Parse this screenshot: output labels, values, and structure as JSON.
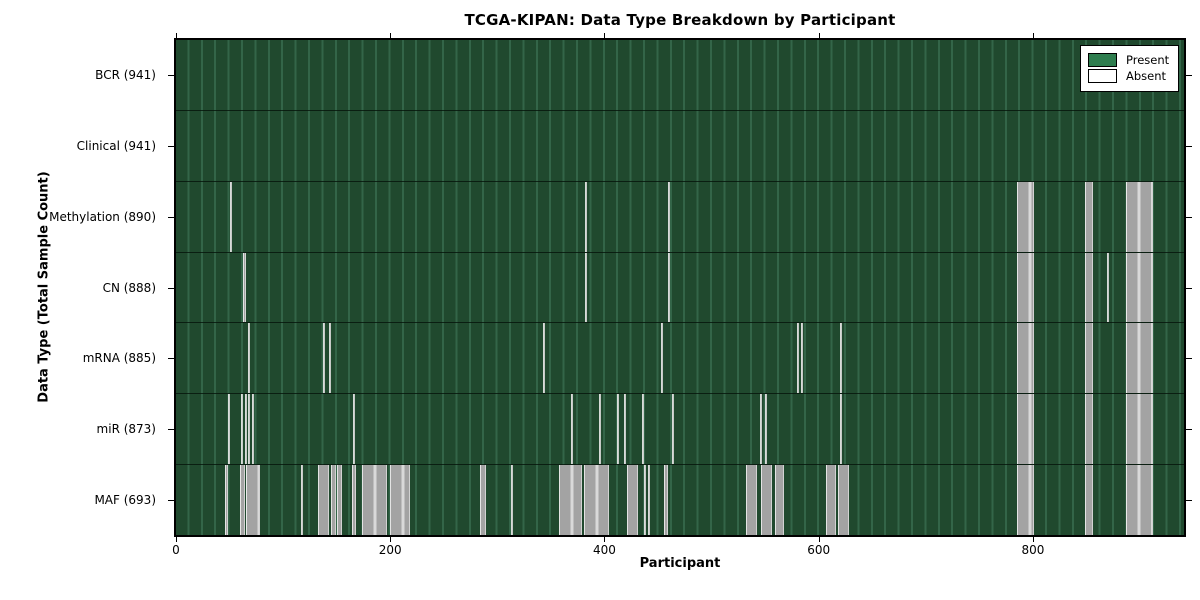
{
  "figure": {
    "title": "TCGA-KIPAN: Data Type Breakdown by Participant",
    "xlabel": "Participant",
    "ylabel": "Data Type (Total Sample Count)"
  },
  "legend": {
    "present": "Present",
    "absent": "Absent"
  },
  "colors": {
    "present_fill": "#2e7d4e",
    "present_dark": "#20492e",
    "present_grid_line": "#336548",
    "absent_fill": "#ffffff",
    "absent_stripe": "#a3a3a3",
    "absent_stripe_light": "#d9d9d9",
    "axis": "#000000",
    "figure_background": "#ffffff"
  },
  "chart_data": {
    "type": "heatmap",
    "title": "TCGA-KIPAN: Data Type Breakdown by Participant",
    "xlabel": "Participant",
    "ylabel": "Data Type (Total Sample Count)",
    "legend": [
      {
        "label": "Present",
        "color": "#2e7d4e"
      },
      {
        "label": "Absent",
        "color": "#ffffff"
      }
    ],
    "legend_position": "upper right",
    "grid": false,
    "x_range": [
      0,
      941
    ],
    "x_ticks": [
      0,
      200,
      400,
      600,
      800
    ],
    "total_participants": 941,
    "rows": [
      {
        "label": "BCR (941)",
        "data_type": "BCR",
        "present_count": 941,
        "absent_count": 0,
        "absent_intervals": []
      },
      {
        "label": "Clinical (941)",
        "data_type": "Clinical",
        "present_count": 941,
        "absent_count": 0,
        "absent_intervals": []
      },
      {
        "label": "Methylation (890)",
        "data_type": "Methylation",
        "present_count": 890,
        "absent_count": 51,
        "absent_intervals": [
          [
            50,
            51
          ],
          [
            382,
            383
          ],
          [
            459,
            460
          ],
          [
            785,
            801
          ],
          [
            849,
            856
          ],
          [
            887,
            912
          ]
        ]
      },
      {
        "label": "CN (888)",
        "data_type": "CN",
        "present_count": 888,
        "absent_count": 53,
        "absent_intervals": [
          [
            63,
            65
          ],
          [
            382,
            383
          ],
          [
            459,
            460
          ],
          [
            785,
            801
          ],
          [
            849,
            856
          ],
          [
            869,
            870
          ],
          [
            887,
            912
          ]
        ]
      },
      {
        "label": "mRNA (885)",
        "data_type": "mRNA",
        "present_count": 885,
        "absent_count": 56,
        "absent_intervals": [
          [
            67,
            68
          ],
          [
            137,
            138
          ],
          [
            143,
            144
          ],
          [
            343,
            344
          ],
          [
            453,
            454
          ],
          [
            580,
            581
          ],
          [
            583,
            584
          ],
          [
            620,
            621
          ],
          [
            785,
            801
          ],
          [
            849,
            856
          ],
          [
            887,
            912
          ]
        ]
      },
      {
        "label": "miR (873)",
        "data_type": "miR",
        "present_count": 873,
        "absent_count": 68,
        "absent_intervals": [
          [
            49,
            50
          ],
          [
            61,
            63
          ],
          [
            64,
            66
          ],
          [
            67,
            69
          ],
          [
            71,
            73
          ],
          [
            165,
            166
          ],
          [
            369,
            370
          ],
          [
            395,
            396
          ],
          [
            412,
            413
          ],
          [
            418,
            419
          ],
          [
            435,
            436
          ],
          [
            463,
            465
          ],
          [
            545,
            546
          ],
          [
            550,
            551
          ],
          [
            620,
            621
          ],
          [
            785,
            801
          ],
          [
            849,
            856
          ],
          [
            887,
            912
          ]
        ]
      },
      {
        "label": "MAF (693)",
        "data_type": "MAF",
        "present_count": 693,
        "absent_count": 248,
        "absent_intervals": [
          [
            46,
            49
          ],
          [
            60,
            64
          ],
          [
            65,
            78
          ],
          [
            117,
            119
          ],
          [
            133,
            143
          ],
          [
            145,
            149
          ],
          [
            150,
            155
          ],
          [
            164,
            168
          ],
          [
            174,
            197
          ],
          [
            200,
            218
          ],
          [
            284,
            289
          ],
          [
            313,
            315
          ],
          [
            358,
            379
          ],
          [
            381,
            404
          ],
          [
            421,
            431
          ],
          [
            437,
            438
          ],
          [
            441,
            442
          ],
          [
            456,
            459
          ],
          [
            532,
            542
          ],
          [
            546,
            556
          ],
          [
            559,
            568
          ],
          [
            607,
            616
          ],
          [
            618,
            628
          ],
          [
            785,
            801
          ],
          [
            849,
            856
          ],
          [
            887,
            912
          ]
        ]
      }
    ]
  }
}
